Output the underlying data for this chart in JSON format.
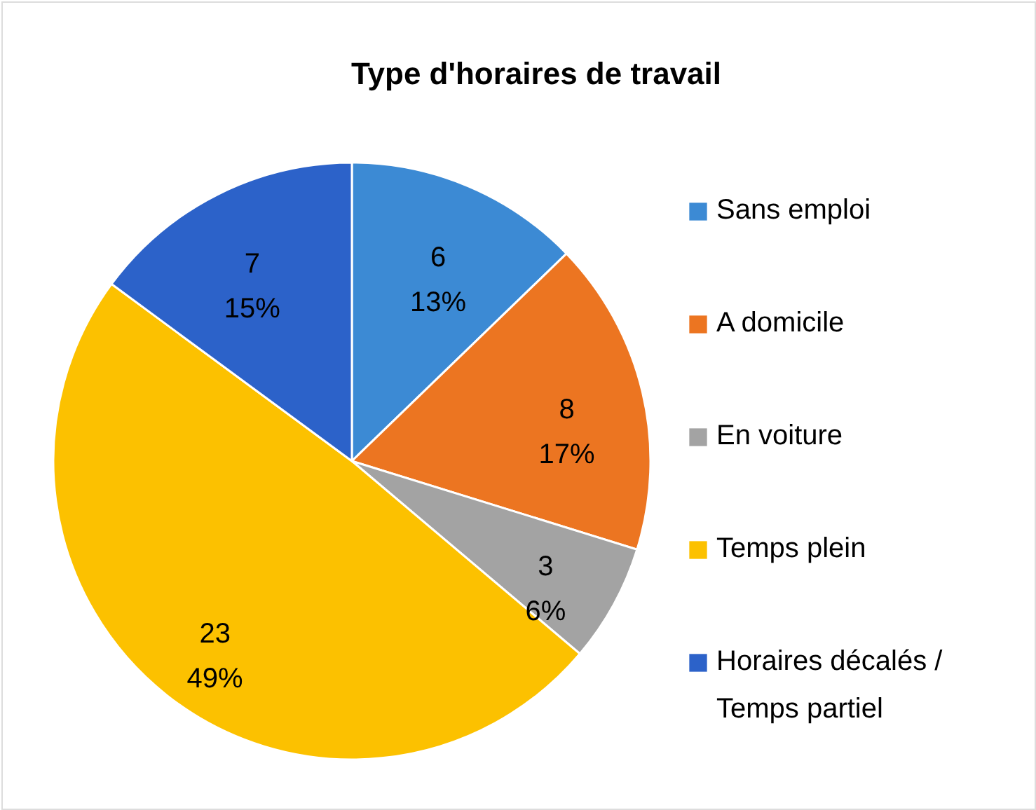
{
  "chart_data": {
    "type": "pie",
    "title": "Type d'horaires de travail",
    "categories": [
      "Sans emploi",
      "A domicile",
      "En voiture",
      "Temps plein",
      "Horaires décalés /\nTemps partiel"
    ],
    "values": [
      6,
      8,
      3,
      23,
      7
    ],
    "colors": [
      "#3c8ad4",
      "#ec7521",
      "#a3a3a3",
      "#fcc100",
      "#2c62c9"
    ],
    "value_labels": [
      "6\n13%",
      "8\n17%",
      "3\n6%",
      "23\n49%",
      "7\n15%"
    ],
    "legend": "right"
  }
}
